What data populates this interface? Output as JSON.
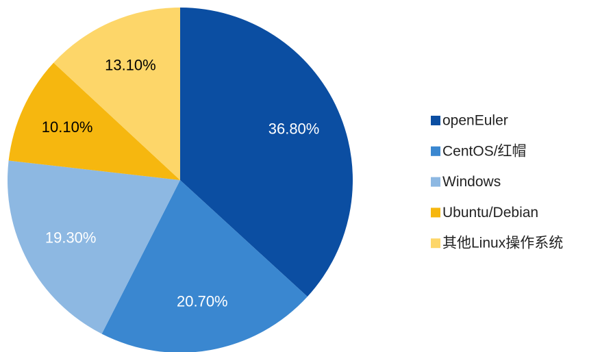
{
  "chart_data": {
    "type": "pie",
    "categories": [
      "openEuler",
      "CentOS/红帽",
      "Windows",
      "Ubuntu/Debian",
      "其他Linux操作系统"
    ],
    "values": [
      36.8,
      20.7,
      19.3,
      10.1,
      13.1
    ],
    "value_labels": [
      "36.80%",
      "20.70%",
      "19.30%",
      "10.10%",
      "13.10%"
    ],
    "colors": [
      "#0b4ea2",
      "#3a87d0",
      "#8db8e2",
      "#f6b70f",
      "#fdd669"
    ],
    "label_colors": [
      "#ffffff",
      "#ffffff",
      "#ffffff",
      "#000000",
      "#000000"
    ],
    "legend": "right"
  }
}
